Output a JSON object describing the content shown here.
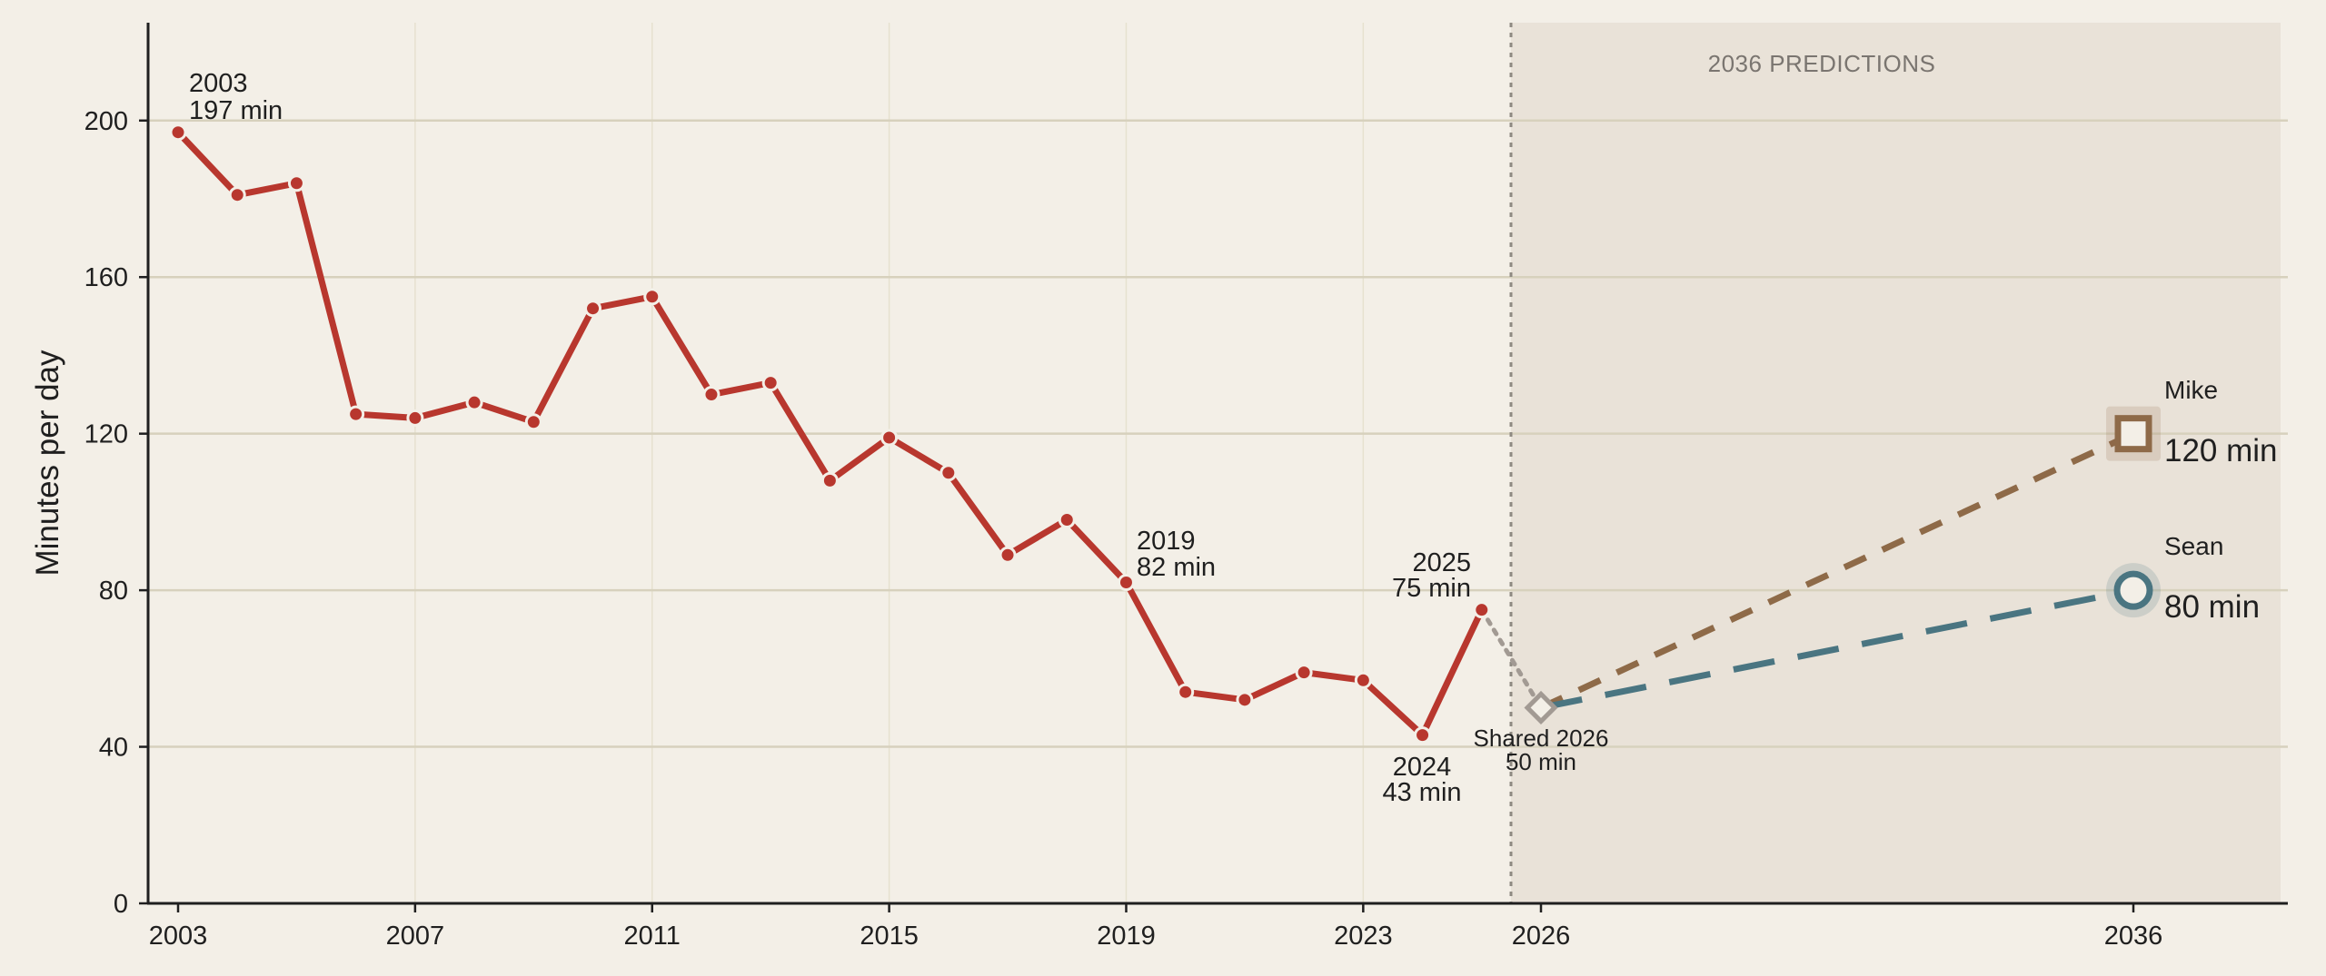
{
  "chart_data": {
    "type": "line",
    "ylabel": "Minutes per day",
    "xlabel": "",
    "ylim": [
      0,
      225
    ],
    "yticks": [
      0,
      40,
      80,
      120,
      160,
      200
    ],
    "xticks": [
      2003,
      2007,
      2011,
      2015,
      2019,
      2023,
      2026,
      2036
    ],
    "grid": "horizontal",
    "colors": {
      "history": "#b8372e",
      "mike": "#8e6a48",
      "sean": "#4a7581",
      "shared": "#a29a93",
      "prediction_region": "#e9e2d8",
      "background": "#f3efe7",
      "grid": "#d7d1bd"
    },
    "series": [
      {
        "values": [
          {
            "x": 2003,
            "y": 197
          },
          {
            "x": 2004,
            "y": 181
          },
          {
            "x": 2005,
            "y": 184
          },
          {
            "x": 2006,
            "y": 125
          },
          {
            "x": 2007,
            "y": 124
          },
          {
            "x": 2008,
            "y": 128
          },
          {
            "x": 2009,
            "y": 123
          },
          {
            "x": 2010,
            "y": 152
          },
          {
            "x": 2011,
            "y": 155
          },
          {
            "x": 2012,
            "y": 130
          },
          {
            "x": 2013,
            "y": 133
          },
          {
            "x": 2014,
            "y": 108
          },
          {
            "x": 2015,
            "y": 119
          },
          {
            "x": 2016,
            "y": 110
          },
          {
            "x": 2017,
            "y": 89
          },
          {
            "x": 2018,
            "y": 98
          },
          {
            "x": 2019,
            "y": 82
          },
          {
            "x": 2020,
            "y": 54
          },
          {
            "x": 2021,
            "y": 52
          },
          {
            "x": 2022,
            "y": 59
          },
          {
            "x": 2023,
            "y": 57
          },
          {
            "x": 2024,
            "y": 43
          },
          {
            "x": 2025,
            "y": 75
          }
        ]
      }
    ],
    "bridge": [
      {
        "x": 2025,
        "y": 75
      },
      {
        "x": 2026,
        "y": 50
      }
    ],
    "shared_point": {
      "x": 2026,
      "y": 50,
      "label": "Shared 2026",
      "value_label": "50 min"
    },
    "predictions": [
      {
        "name": "Mike",
        "x": 2036,
        "y": 120,
        "value_label": "120 min",
        "marker": "square"
      },
      {
        "name": "Sean",
        "x": 2036,
        "y": 80,
        "value_label": "80 min",
        "marker": "circle"
      }
    ],
    "prediction_region": {
      "start_year": 2026,
      "label": "2036 PREDICTIONS"
    },
    "annotations": [
      {
        "year_label": "2003",
        "value_label": "197 min"
      },
      {
        "year_label": "2019",
        "value_label": "82 min"
      },
      {
        "year_label": "2025",
        "value_label": "75 min"
      },
      {
        "year_label": "2024",
        "value_label": "43 min"
      }
    ]
  }
}
